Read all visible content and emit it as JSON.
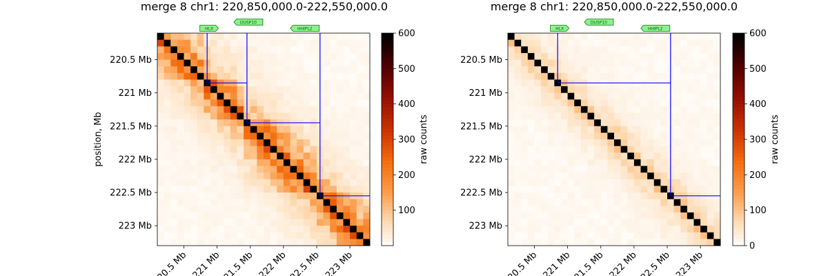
{
  "colors": {
    "diagonal": "#000000",
    "tad_box": "#0000ff",
    "gene_fill": "#90ee90",
    "gene_stroke": "#008000",
    "gene_text": "#006400"
  },
  "chart_data": [
    {
      "type": "heatmap",
      "title": "merge 8 chr1: 220,850,000.0-222,550,000.0",
      "ylabel": "position, Mb",
      "xlabel": "",
      "extent_mb": [
        220.1,
        223.3
      ],
      "bin_size_mb": 0.1,
      "yticks": [
        {
          "value": 220.5,
          "label": "220.5 Mb"
        },
        {
          "value": 221.0,
          "label": "221 Mb"
        },
        {
          "value": 221.5,
          "label": "221.5 Mb"
        },
        {
          "value": 222.0,
          "label": "222 Mb"
        },
        {
          "value": 222.5,
          "label": "222.5 Mb"
        },
        {
          "value": 223.0,
          "label": "223 Mb"
        }
      ],
      "xticks": [
        {
          "value": 220.5,
          "label": "220.5 Mb"
        },
        {
          "value": 221.0,
          "label": "221 Mb"
        },
        {
          "value": 221.5,
          "label": "221.5 Mb"
        },
        {
          "value": 222.0,
          "label": "222 Mb"
        },
        {
          "value": 222.5,
          "label": "222.5 Mb"
        },
        {
          "value": 223.0,
          "label": "223 Mb"
        }
      ],
      "colorbar": {
        "label": "raw counts",
        "min": 0,
        "max": 600,
        "ticks": [
          100,
          200,
          300,
          400,
          500,
          600
        ]
      },
      "diagonal_value": 600,
      "tad_boundaries_mb": [
        220.85,
        221.45,
        222.55
      ],
      "genes": [
        {
          "name": "HLX",
          "position_mb": 220.86,
          "strand": "+"
        },
        {
          "name": "DUSP10",
          "position_mb": 221.45,
          "strand": "-"
        },
        {
          "name": "HHIPL2",
          "position_mb": 222.3,
          "strand": "-"
        }
      ],
      "contact_model": {
        "near_diagonal_peak": 130,
        "decay": 0.78,
        "in_tad_multiplier": 1.6
      }
    },
    {
      "type": "heatmap",
      "title": "merge 8 chr1: 220,850,000.0-222,550,000.0",
      "ylabel": "",
      "xlabel": "",
      "extent_mb": [
        220.1,
        223.3
      ],
      "bin_size_mb": 0.1,
      "yticks": [
        {
          "value": 220.5,
          "label": "220.5 Mb"
        },
        {
          "value": 221.0,
          "label": "221 Mb"
        },
        {
          "value": 221.5,
          "label": "221.5 Mb"
        },
        {
          "value": 222.0,
          "label": "222 Mb"
        },
        {
          "value": 222.5,
          "label": "222.5 Mb"
        },
        {
          "value": 223.0,
          "label": "223 Mb"
        }
      ],
      "xticks": [
        {
          "value": 220.5,
          "label": "220.5 Mb"
        },
        {
          "value": 221.0,
          "label": "221 Mb"
        },
        {
          "value": 221.5,
          "label": "221.5 Mb"
        },
        {
          "value": 222.0,
          "label": "222 Mb"
        },
        {
          "value": 222.5,
          "label": "222.5 Mb"
        },
        {
          "value": 223.0,
          "label": "223 Mb"
        }
      ],
      "colorbar": {
        "label": "raw counts",
        "min": 0,
        "max": 600,
        "ticks": [
          0,
          100,
          200,
          300,
          400,
          500,
          600
        ]
      },
      "diagonal_value": 600,
      "tad_boundaries_mb": [
        220.85,
        222.55
      ],
      "genes": [
        {
          "name": "HLX",
          "position_mb": 220.86,
          "strand": "+"
        },
        {
          "name": "DUSP10",
          "position_mb": 221.45,
          "strand": "-"
        },
        {
          "name": "HHIPL2",
          "position_mb": 222.3,
          "strand": "-"
        }
      ],
      "contact_model": {
        "near_diagonal_peak": 70,
        "decay": 0.7,
        "in_tad_multiplier": 1.0
      }
    }
  ]
}
